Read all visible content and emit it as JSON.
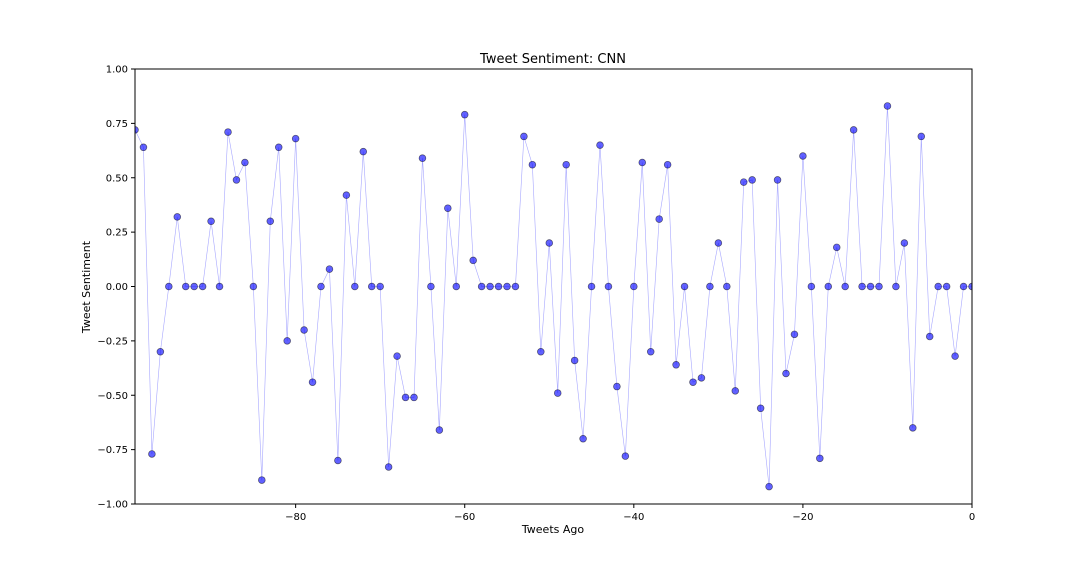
{
  "chart_data": {
    "type": "line",
    "title": "Tweet Sentiment: CNN",
    "xlabel": "Tweets Ago",
    "ylabel": "Tweet Sentiment",
    "xlim": [
      -99,
      0
    ],
    "ylim": [
      -1.0,
      1.0
    ],
    "xticks": [
      -80,
      -60,
      -40,
      -20,
      0
    ],
    "xtick_labels": [
      "−80",
      "−60",
      "−40",
      "−20",
      "0"
    ],
    "yticks": [
      1.0,
      0.75,
      0.5,
      0.25,
      0.0,
      -0.25,
      -0.5,
      -0.75,
      -1.0
    ],
    "ytick_labels": [
      "1.00",
      "0.75",
      "0.50",
      "0.25",
      "0.00",
      "−0.25",
      "−0.50",
      "−0.75",
      "−1.00"
    ],
    "grid": false,
    "legend": "none",
    "line_color": "#0000ff",
    "marker_color": "#0000ff",
    "marker_edge_color": "#000000",
    "x": [
      -99,
      -98,
      -97,
      -96,
      -95,
      -94,
      -93,
      -92,
      -91,
      -90,
      -89,
      -88,
      -87,
      -86,
      -85,
      -84,
      -83,
      -82,
      -81,
      -80,
      -79,
      -78,
      -77,
      -76,
      -75,
      -74,
      -73,
      -72,
      -71,
      -70,
      -69,
      -68,
      -67,
      -66,
      -65,
      -64,
      -63,
      -62,
      -61,
      -60,
      -59,
      -58,
      -57,
      -56,
      -55,
      -54,
      -53,
      -52,
      -51,
      -50,
      -49,
      -48,
      -47,
      -46,
      -45,
      -44,
      -43,
      -42,
      -41,
      -40,
      -39,
      -38,
      -37,
      -36,
      -35,
      -34,
      -33,
      -32,
      -31,
      -30,
      -29,
      -28,
      -27,
      -26,
      -25,
      -24,
      -23,
      -22,
      -21,
      -20,
      -19,
      -18,
      -17,
      -16,
      -15,
      -14,
      -13,
      -12,
      -11,
      -10,
      -9,
      -8,
      -7,
      -6,
      -5,
      -4,
      -3,
      -2,
      -1,
      0
    ],
    "y": [
      0.72,
      0.64,
      -0.77,
      -0.3,
      0.0,
      0.32,
      0.0,
      0.0,
      0.0,
      0.3,
      0.0,
      0.71,
      0.49,
      0.57,
      0.0,
      -0.89,
      0.3,
      0.64,
      -0.25,
      0.68,
      -0.2,
      -0.44,
      0.0,
      0.08,
      -0.8,
      0.42,
      0.0,
      0.62,
      0.0,
      0.0,
      -0.83,
      -0.32,
      -0.51,
      -0.51,
      0.59,
      0.0,
      -0.66,
      0.36,
      0.0,
      0.79,
      0.12,
      0.0,
      0.0,
      0.0,
      0.0,
      0.0,
      0.69,
      0.56,
      -0.3,
      0.2,
      -0.49,
      0.56,
      -0.34,
      -0.7,
      0.0,
      0.65,
      0.0,
      -0.46,
      -0.78,
      0.0,
      0.57,
      -0.3,
      0.31,
      0.56,
      -0.36,
      0.0,
      -0.44,
      -0.42,
      0.0,
      0.2,
      0.0,
      -0.48,
      0.48,
      0.49,
      -0.56,
      -0.92,
      0.49,
      -0.4,
      -0.22,
      0.6,
      0.0,
      -0.79,
      0.0,
      0.18,
      0.0,
      0.72,
      0.0,
      0.0,
      0.0,
      0.83,
      0.0,
      0.2,
      -0.65,
      0.69,
      -0.23,
      0.0,
      0.0,
      -0.32,
      0.0,
      0.0
    ]
  }
}
